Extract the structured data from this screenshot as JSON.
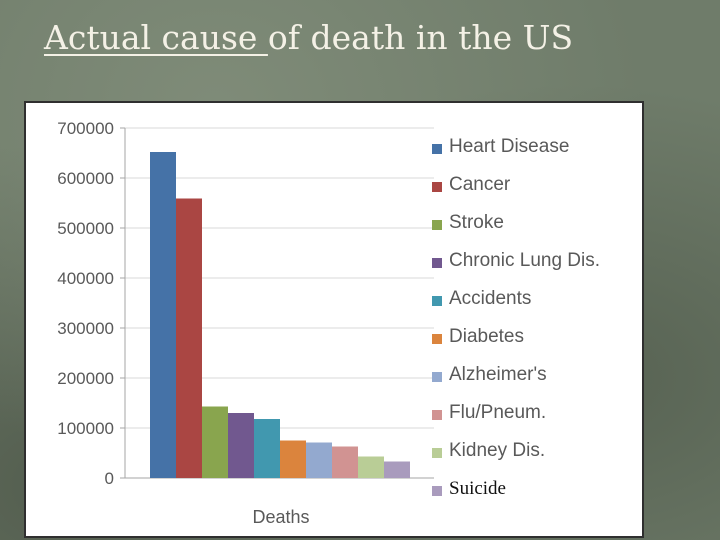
{
  "slide": {
    "title_underlined": "Actual cause ",
    "title_rest": "of death  in the US"
  },
  "chart_data": {
    "type": "bar",
    "categories": [
      "Deaths"
    ],
    "xlabel": "Deaths",
    "ylabel": "",
    "ylim": [
      0,
      700000
    ],
    "yticks": [
      0,
      100000,
      200000,
      300000,
      400000,
      500000,
      600000,
      700000
    ],
    "grid": true,
    "legend_position": "right",
    "series": [
      {
        "name": "Heart Disease",
        "values": [
          652000
        ],
        "color": "#4572a7"
      },
      {
        "name": "Cancer",
        "values": [
          559000
        ],
        "color": "#aa4643"
      },
      {
        "name": "Stroke",
        "values": [
          143000
        ],
        "color": "#89a54e"
      },
      {
        "name": "Chronic Lung Dis.",
        "values": [
          130000
        ],
        "color": "#71588f"
      },
      {
        "name": "Accidents",
        "values": [
          118000
        ],
        "color": "#4198af"
      },
      {
        "name": "Diabetes",
        "values": [
          75000
        ],
        "color": "#db843d"
      },
      {
        "name": "Alzheimer's",
        "values": [
          71000
        ],
        "color": "#93a9cf"
      },
      {
        "name": "Flu/Pneum.",
        "values": [
          63000
        ],
        "color": "#d19392"
      },
      {
        "name": "Kidney Dis.",
        "values": [
          43000
        ],
        "color": "#b9cd96"
      },
      {
        "name": "Suicide",
        "values": [
          33000
        ],
        "color": "#a99bbd"
      }
    ]
  }
}
